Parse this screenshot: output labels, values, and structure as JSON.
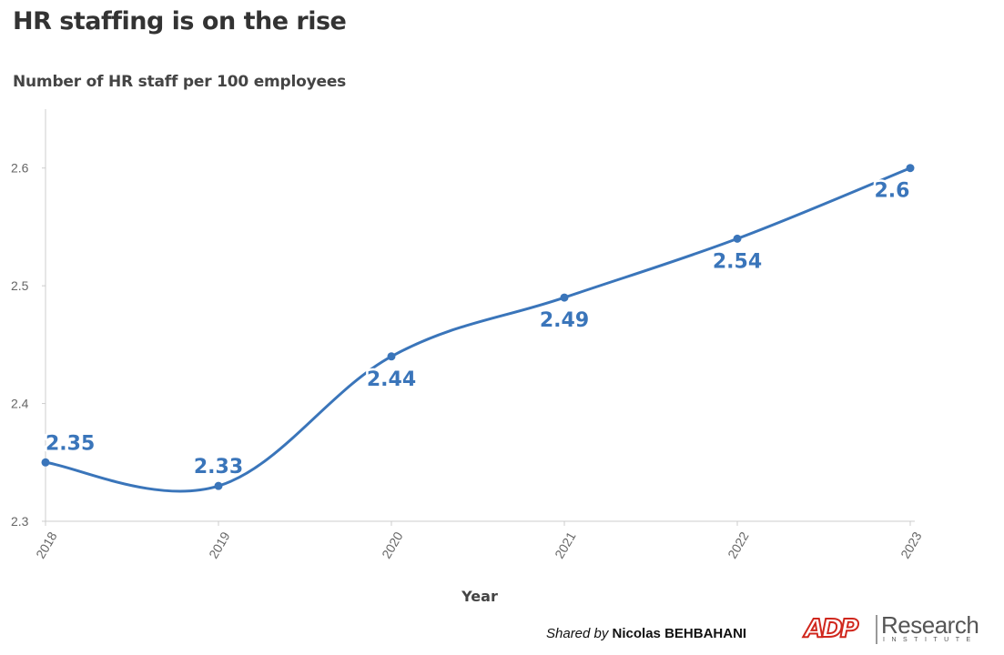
{
  "header": {
    "title": "HR staffing is on the rise",
    "subtitle": "Number of HR staff per 100 employees"
  },
  "credit": {
    "prefix": "Shared by ",
    "name": "Nicolas BEHBAHANI"
  },
  "logo": {
    "adp": "ADP",
    "research": "Research",
    "institute": "INSTITUTE"
  },
  "colors": {
    "series": "#3a75ba",
    "axis": "#cccccc",
    "grid": "#e6e6e6",
    "brand_red": "#d0271d"
  },
  "chart_data": {
    "type": "line",
    "xlabel": "Year",
    "ylabel": "",
    "x": [
      "2018",
      "2019",
      "2020",
      "2021",
      "2022",
      "2023"
    ],
    "series": [
      {
        "values": [
          2.35,
          2.33,
          2.44,
          2.49,
          2.54,
          2.6
        ]
      }
    ],
    "data_labels": [
      "2.35",
      "2.33",
      "2.44",
      "2.49",
      "2.54",
      "2.6"
    ],
    "y_ticks": [
      2.3,
      2.4,
      2.5,
      2.6
    ],
    "y_tick_labels": [
      "2.3",
      "2.4",
      "2.5",
      "2.6"
    ],
    "ylim": [
      2.3,
      2.65
    ],
    "grid": false,
    "line_style": "smooth",
    "markers": true
  }
}
